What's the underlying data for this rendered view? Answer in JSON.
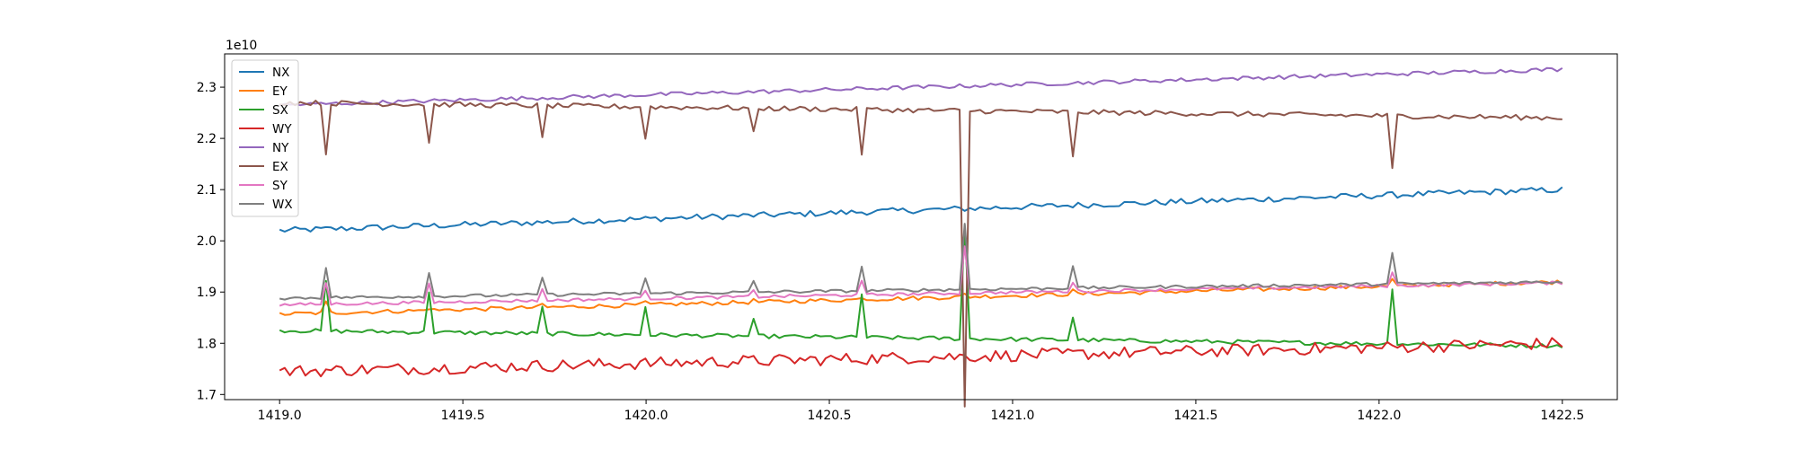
{
  "chart_data": {
    "type": "line",
    "offset_text": "1e10",
    "xlim": [
      1418.85,
      1422.65
    ],
    "ylim": [
      1.69,
      2.365
    ],
    "xticks": [
      1419.0,
      1419.5,
      1420.0,
      1420.5,
      1421.0,
      1421.5,
      1422.0,
      1422.5
    ],
    "xtick_labels": [
      "1419.0",
      "1419.5",
      "1420.0",
      "1420.5",
      "1421.0",
      "1421.5",
      "1422.0",
      "1422.5"
    ],
    "yticks": [
      1.7,
      1.8,
      1.9,
      2.0,
      2.1,
      2.2,
      2.3
    ],
    "ytick_labels": [
      "1.7",
      "1.8",
      "1.9",
      "2.0",
      "2.1",
      "2.2",
      "2.3"
    ],
    "legend_position": "top-left",
    "grid": false,
    "x_range": [
      1419.0,
      1422.5
    ],
    "points_per_series": 250,
    "spike_x": [
      1419.125,
      1419.41,
      1419.71,
      1420.0,
      1420.29,
      1420.59,
      1420.875,
      1421.17,
      1422.03
    ],
    "series": [
      {
        "name": "NX",
        "color": "#1f77b4",
        "start": 2.02,
        "end": 2.1,
        "noise": 0.006,
        "spikes": [],
        "big_spike": null
      },
      {
        "name": "EY",
        "color": "#ff7f0e",
        "start": 1.857,
        "end": 1.92,
        "noise": 0.004,
        "spikes": [
          0.02,
          0.005,
          0.006,
          0.005,
          0.003,
          0.006,
          0.005,
          0.006,
          0.012
        ],
        "big_spike": null
      },
      {
        "name": "SX",
        "color": "#2ca02c",
        "start": 1.825,
        "end": 1.795,
        "noise": 0.004,
        "spikes": [
          0.095,
          0.08,
          0.05,
          0.055,
          0.03,
          0.085,
          0.0,
          0.045,
          0.11
        ],
        "big_spike": 0.22
      },
      {
        "name": "WY",
        "color": "#d62728",
        "start": 1.745,
        "end": 1.8,
        "noise": 0.012,
        "spikes": [],
        "big_spike": null
      },
      {
        "name": "NY",
        "color": "#9467bd",
        "start": 2.265,
        "end": 2.335,
        "noise": 0.004,
        "spikes": [],
        "big_spike": null
      },
      {
        "name": "EX",
        "color": "#8c564b",
        "start": 2.27,
        "end": 2.24,
        "noise": 0.005,
        "spikes": [
          -0.1,
          -0.075,
          -0.065,
          -0.06,
          -0.05,
          -0.085,
          0.0,
          -0.09,
          -0.105
        ],
        "big_spike": -0.58
      },
      {
        "name": "SY",
        "color": "#e377c2",
        "start": 1.875,
        "end": 1.918,
        "noise": 0.003,
        "spikes": [
          0.04,
          0.035,
          0.02,
          0.018,
          0.012,
          0.025,
          0.0,
          0.018,
          0.025
        ],
        "big_spike": 0.09
      },
      {
        "name": "WX",
        "color": "#7f7f7f",
        "start": 1.888,
        "end": 1.92,
        "noise": 0.003,
        "spikes": [
          0.06,
          0.045,
          0.035,
          0.03,
          0.02,
          0.045,
          0.0,
          0.045,
          0.06
        ],
        "big_spike": 0.13
      }
    ]
  }
}
